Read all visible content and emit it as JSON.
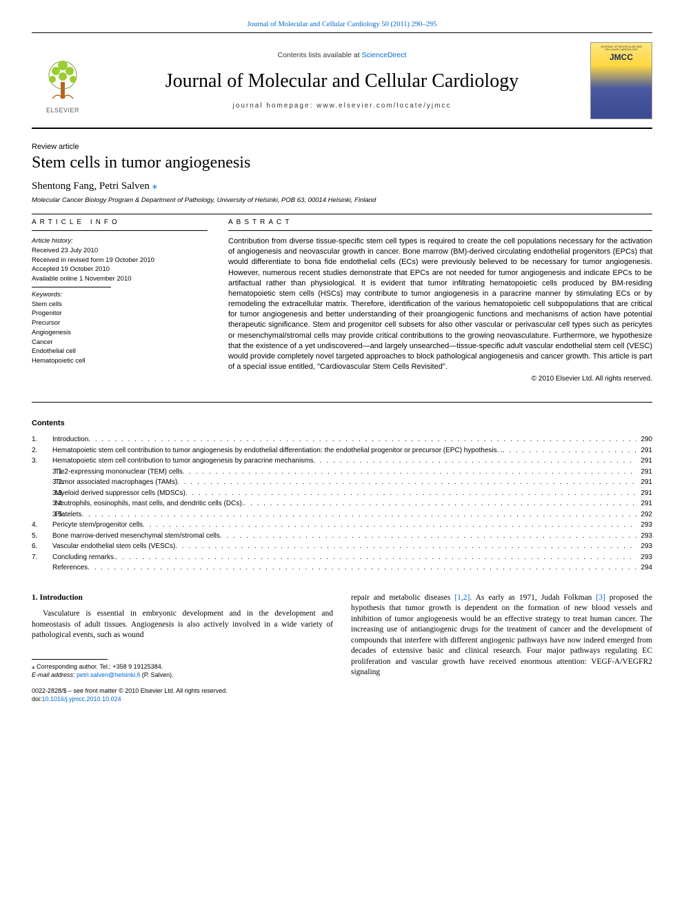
{
  "colors": {
    "link": "#0066cc",
    "text": "#000000",
    "bg": "#ffffff",
    "elsevier_orange": "#ff8a00",
    "cover_top": "#ffe680",
    "cover_bot": "#3a4a90"
  },
  "header": {
    "top_link": "Journal of Molecular and Cellular Cardiology 50 (2011) 290–295",
    "contents_prefix": "Contents lists available at ",
    "contents_link": "ScienceDirect",
    "journal": "Journal of Molecular and Cellular Cardiology",
    "homepage": "journal homepage: www.elsevier.com/locate/yjmcc",
    "publisher": "ELSEVIER",
    "cover_small": "JOURNAL OF MOLECULAR AND CELLULAR CARDIOLOGY",
    "cover_big": "JMCC"
  },
  "article": {
    "type": "Review article",
    "title": "Stem cells in tumor angiogenesis",
    "authors": "Shentong Fang, Petri Salven",
    "affil": "Molecular Cancer Biology Program & Department of Pathology, University of Helsinki, POB 63, 00014 Helsinki, Finland"
  },
  "info": {
    "heading": "article info",
    "hist_label": "Article history:",
    "received": "Received 23 July 2010",
    "revised": "Received in revised form 19 October 2010",
    "accepted": "Accepted 19 October 2010",
    "online": "Available online 1 November 2010",
    "kw_label": "Keywords:",
    "kw": [
      "Stem cells",
      "Progenitor",
      "Precursor",
      "Angiogenesis",
      "Cancer",
      "Endothelial cell",
      "Hematopoietic cell"
    ]
  },
  "abstract": {
    "heading": "abstract",
    "text": "Contribution from diverse tissue-specific stem cell types is required to create the cell populations necessary for the activation of angiogenesis and neovascular growth in cancer. Bone marrow (BM)-derived circulating endothelial progenitors (EPCs) that would differentiate to bona fide endothelial cells (ECs) were previously believed to be necessary for tumor angiogenesis. However, numerous recent studies demonstrate that EPCs are not needed for tumor angiogenesis and indicate EPCs to be artifactual rather than physiological. It is evident that tumor infiltrating hematopoietic cells produced by BM-residing hematopoietic stem cells (HSCs) may contribute to tumor angiogenesis in a paracrine manner by stimulating ECs or by remodeling the extracellular matrix. Therefore, identification of the various hematopoietic cell subpopulations that are critical for tumor angiogenesis and better understanding of their proangiogenic functions and mechanisms of action have potential therapeutic significance. Stem and progenitor cell subsets for also other vascular or perivascular cell types such as pericytes or mesenchymal/stromal cells may provide critical contributions to the growing neovasculature. Furthermore, we hypothesize that the existence of a yet undiscovered—and largely unsearched—tissue-specific adult vascular endothelial stem cell (VESC) would provide completely novel targeted approaches to block pathological angiogenesis and cancer growth. This article is part of a special issue entitled, \"Cardiovascular Stem Cells Revisited\".",
    "copyright": "© 2010 Elsevier Ltd. All rights reserved."
  },
  "contents": {
    "heading": "Contents",
    "items": [
      {
        "num": "1.",
        "indent": 0,
        "label": "Introduction",
        "page": "290"
      },
      {
        "num": "2.",
        "indent": 0,
        "label": "Hematopoietic stem cell contribution to tumor angiogenesis by endothelial differentiation: the endothelial progenitor or precursor (EPC) hypothesis. .",
        "page": "291"
      },
      {
        "num": "3.",
        "indent": 0,
        "label": "Hematopoietic stem cell contribution to tumor angiogenesis by paracrine mechanisms",
        "page": "291"
      },
      {
        "num": "3.1.",
        "indent": 1,
        "label": "Tie2-expressing mononuclear (TEM) cells",
        "page": "291"
      },
      {
        "num": "3.2.",
        "indent": 1,
        "label": "Tumor associated macrophages (TAMs)",
        "page": "291"
      },
      {
        "num": "3.3.",
        "indent": 1,
        "label": "Myeloid derived suppressor cells (MDSCs)",
        "page": "291"
      },
      {
        "num": "3.4.",
        "indent": 1,
        "label": "Neutrophils, eosinophils, mast cells, and dendritic cells (DCs).",
        "page": "291"
      },
      {
        "num": "3.5.",
        "indent": 1,
        "label": "Platelets",
        "page": "292"
      },
      {
        "num": "4.",
        "indent": 0,
        "label": "Pericyte stem/progenitor cells",
        "page": "293"
      },
      {
        "num": "5.",
        "indent": 0,
        "label": "Bone marrow-derived mesenchymal stem/stromal cells",
        "page": "293"
      },
      {
        "num": "6.",
        "indent": 0,
        "label": "Vascular endothelial stem cells (VESCs)",
        "page": "293"
      },
      {
        "num": "7.",
        "indent": 0,
        "label": "Concluding remarks.",
        "page": "293"
      },
      {
        "num": "",
        "indent": 0,
        "label": "References",
        "page": "294"
      }
    ]
  },
  "body": {
    "section_head": "1. Introduction",
    "left": "Vasculature is essential in embryonic development and in the development and homeostasis of adult tissues. Angiogenesis is also actively involved in a wide variety of pathological events, such as wound",
    "right_a": "repair and metabolic diseases ",
    "cite1": "[1,2]",
    "right_b": ". As early as 1971, Judah Folkman ",
    "cite2": "[3]",
    "right_c": " proposed the hypothesis that tumor growth is dependent on the formation of new blood vessels and inhibition of tumor angiogenesis would be an effective strategy to treat human cancer. The increasing use of antiangiogenic drugs for the treatment of cancer and the development of compounds that interfere with different angiogenic pathways have now indeed emerged from decades of extensive basic and clinical research. Four major pathways regulating EC proliferation and vascular growth have received enormous attention: VEGF-A/VEGFR2 signaling"
  },
  "footnote": {
    "corr": "⁎ Corresponding author. Tel.: +358 9 19125384.",
    "email_label": "E-mail address: ",
    "email": "petri.salven@helsinki.fi",
    "email_suffix": " (P. Salven).",
    "issn": "0022-2828/$ – see front matter © 2010 Elsevier Ltd. All rights reserved.",
    "doi_label": "doi:",
    "doi": "10.1016/j.yjmcc.2010.10.024"
  }
}
